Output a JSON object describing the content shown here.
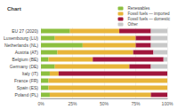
{
  "chart_data": {
    "type": "bar",
    "title": "Chart",
    "orientation": "horizontal",
    "stacked": true,
    "grid": true,
    "legend": "top-right",
    "categories": [
      "EU 27 (2020)",
      "Luxembourg (LU)",
      "Netherlands (NL)",
      "Austria (AT)",
      "Belgium (BE)",
      "Germany (DE)",
      "Italy (IT)",
      "France (FR)",
      "Spain (ES)",
      "Poland (PL)"
    ],
    "series": [
      {
        "name": "Renewables",
        "color": "#8cbf3f",
        "values": [
          23,
          11,
          33,
          13,
          6,
          11,
          7,
          6,
          6,
          7
        ]
      },
      {
        "name": "Fossil fuels — imported",
        "color": "#e8b53a",
        "values": [
          39,
          64,
          42,
          60,
          35,
          59,
          7,
          94,
          94,
          80
        ]
      },
      {
        "name": "Fossil fuels — domestic",
        "color": "#a0163c",
        "values": [
          25,
          12,
          12,
          16,
          56,
          17,
          86,
          0,
          0,
          13
        ]
      },
      {
        "name": "Other",
        "color": "#c8c8c8",
        "values": [
          13,
          13,
          13,
          11,
          3,
          13,
          0,
          0,
          0,
          0
        ]
      }
    ],
    "xlim": [
      0,
      100
    ],
    "xticks": [
      {
        "value": 0,
        "label": "0%"
      },
      {
        "value": 25,
        "label": "25%"
      },
      {
        "value": 50,
        "label": "50%"
      },
      {
        "value": 75,
        "label": "75%"
      },
      {
        "value": 100,
        "label": "100%"
      }
    ]
  }
}
